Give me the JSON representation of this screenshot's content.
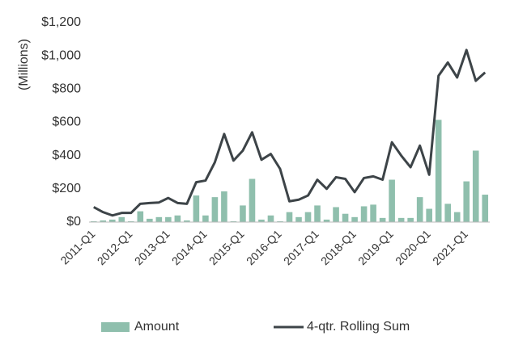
{
  "chart_data": {
    "type": "bar_line",
    "y_axis_label": "(Millions)",
    "categories": [
      "2011-Q1",
      null,
      null,
      null,
      "2012-Q1",
      null,
      null,
      null,
      "2013-Q1",
      null,
      null,
      null,
      "2014-Q1",
      null,
      null,
      null,
      "2015-Q1",
      null,
      null,
      null,
      "2016-Q1",
      null,
      null,
      null,
      "2017-Q1",
      null,
      null,
      null,
      "2018-Q1",
      null,
      null,
      null,
      "2019-Q1",
      null,
      null,
      null,
      "2020-Q1",
      null,
      null,
      null,
      "2021-Q1",
      null,
      null
    ],
    "series": [
      {
        "name": "Amount",
        "type": "bar",
        "color": "#8fbfad",
        "values": [
          5,
          10,
          15,
          30,
          5,
          65,
          20,
          30,
          30,
          40,
          10,
          160,
          40,
          150,
          185,
          5,
          100,
          260,
          15,
          40,
          5,
          60,
          30,
          60,
          100,
          15,
          90,
          50,
          30,
          95,
          105,
          25,
          255,
          25,
          25,
          150,
          80,
          615,
          110,
          60,
          245,
          430,
          165
        ]
      },
      {
        "name": "4-qtr. Rolling Sum",
        "type": "line",
        "color": "#3d4448",
        "values": [
          90,
          60,
          40,
          55,
          55,
          110,
          115,
          118,
          145,
          115,
          110,
          240,
          250,
          360,
          530,
          370,
          430,
          540,
          375,
          410,
          320,
          125,
          135,
          160,
          255,
          200,
          270,
          260,
          180,
          265,
          275,
          255,
          480,
          400,
          330,
          460,
          285,
          880,
          960,
          870,
          1035,
          850,
          900
        ]
      }
    ],
    "ylim": [
      0,
      1200
    ],
    "yticks": [
      {
        "value": 0,
        "label": "$0"
      },
      {
        "value": 200,
        "label": "$200"
      },
      {
        "value": 400,
        "label": "$400"
      },
      {
        "value": 600,
        "label": "$600"
      },
      {
        "value": 800,
        "label": "$800"
      },
      {
        "value": 1000,
        "label": "$1,000"
      },
      {
        "value": 1200,
        "label": "$1,200"
      }
    ],
    "grid": false,
    "legend": "bottom"
  }
}
